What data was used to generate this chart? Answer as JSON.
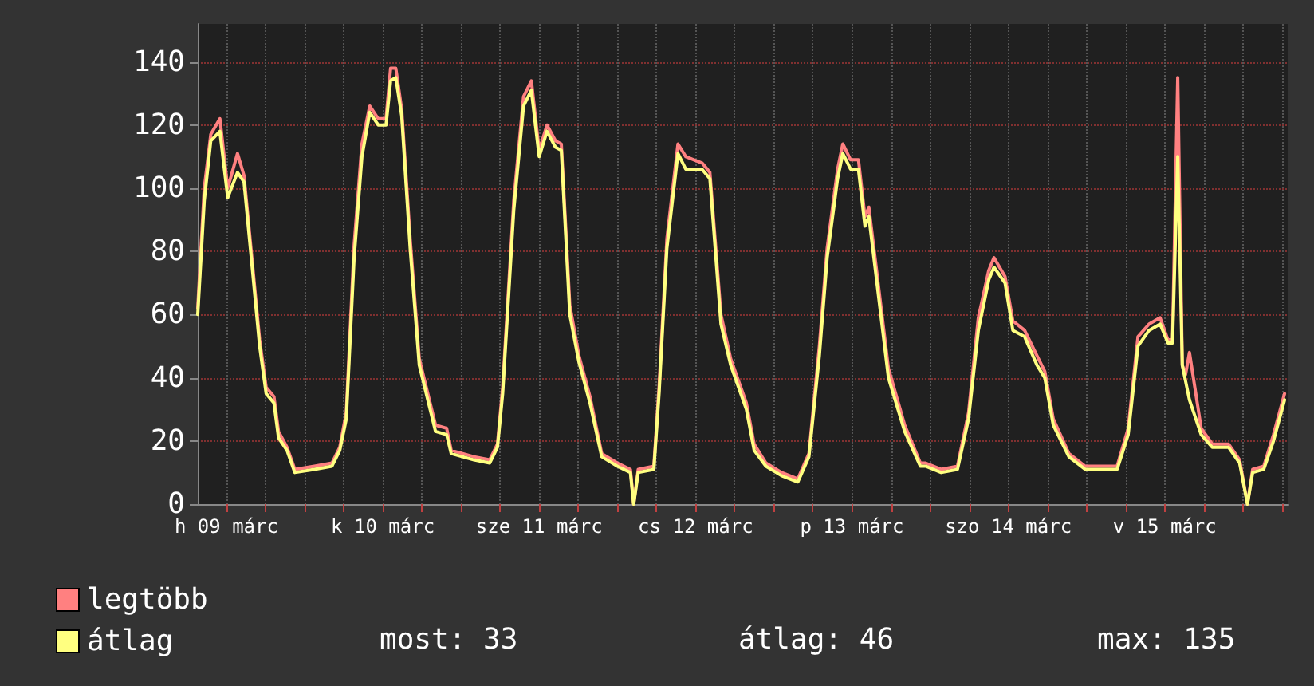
{
  "chart_data": {
    "type": "line",
    "x": [
      "--03-09T07:36",
      "--03-09T08:36",
      "--03-09T09:36",
      "--03-09T11:00",
      "--03-09T12:12",
      "--03-09T13:42",
      "--03-09T14:42",
      "--03-09T16:00",
      "--03-09T17:06",
      "--03-09T18:06",
      "--03-09T19:18",
      "--03-09T20:00",
      "--03-09T21:18",
      "--03-09T22:30",
      "--03-10T01:30",
      "--03-10T04:12",
      "--03-10T05:24",
      "--03-10T06:24",
      "--03-10T07:36",
      "--03-10T08:48",
      "--03-10T10:00",
      "--03-10T11:18",
      "--03-10T12:30",
      "--03-10T13:12",
      "--03-10T14:00",
      "--03-10T14:54",
      "--03-10T16:12",
      "--03-10T17:36",
      "--03-10T20:06",
      "--03-10T21:48",
      "--03-10T22:30",
      "--03-11T02:00",
      "--03-11T04:24",
      "--03-11T05:36",
      "--03-11T06:24",
      "--03-11T08:06",
      "--03-11T09:36",
      "--03-11T10:48",
      "--03-11T12:00",
      "--03-11T13:12",
      "--03-11T14:30",
      "--03-11T15:24",
      "--03-11T16:42",
      "--03-11T18:06",
      "--03-11T19:48",
      "--03-11T21:36",
      "--03-12T00:00",
      "--03-12T02:00",
      "--03-12T02:30",
      "--03-12T03:12",
      "--03-12T05:36",
      "--03-12T06:24",
      "--03-12T07:36",
      "--03-12T09:18",
      "--03-12T10:30",
      "--03-12T13:00",
      "--03-12T14:12",
      "--03-12T15:54",
      "--03-12T17:24",
      "--03-12T19:48",
      "--03-12T21:00",
      "--03-12T22:48",
      "--03-13T01:12",
      "--03-13T03:42",
      "--03-13T05:24",
      "--03-13T07:00",
      "--03-13T08:12",
      "--03-13T09:48",
      "--03-13T10:36",
      "--03-13T11:48",
      "--03-13T13:00",
      "--03-13T14:00",
      "--03-13T14:36",
      "--03-13T15:54",
      "--03-13T17:36",
      "--03-13T20:06",
      "--03-13T22:30",
      "--03-13T23:18",
      "--03-14T01:42",
      "--03-14T04:12",
      "--03-14T05:54",
      "--03-14T07:24",
      "--03-14T09:00",
      "--03-14T09:48",
      "--03-14T11:30",
      "--03-14T12:42",
      "--03-14T14:30",
      "--03-14T16:24",
      "--03-14T17:36",
      "--03-14T18:54",
      "--03-14T21:18",
      "--03-14T23:48",
      "--03-15T03:00",
      "--03-15T04:42",
      "--03-15T06:24",
      "--03-15T07:54",
      "--03-15T09:36",
      "--03-15T11:18",
      "--03-15T12:30",
      "--03-15T13:12",
      "--03-15T14:00",
      "--03-15T14:42",
      "--03-15T15:12",
      "--03-15T15:48",
      "--03-15T17:36",
      "--03-15T19:18",
      "--03-15T21:48",
      "--03-15T23:30",
      "--03-16T00:42",
      "--03-16T01:30",
      "--03-16T03:12",
      "--03-16T04:42",
      "--03-16T06:24"
    ],
    "series": [
      {
        "name": "legtöbb",
        "color": "#ff8080",
        "values": [
          62,
          100,
          117,
          122,
          100,
          111,
          104,
          76,
          52,
          37,
          34,
          23,
          18,
          11,
          12,
          13,
          18,
          29,
          82,
          114,
          126,
          122,
          122,
          138,
          138,
          125,
          84,
          46,
          25,
          24,
          17,
          15,
          14,
          19,
          37,
          96,
          129,
          134,
          112,
          120,
          115,
          114,
          63,
          47,
          34,
          16,
          13,
          11,
          0,
          11,
          12,
          37,
          84,
          114,
          110,
          108,
          105,
          60,
          46,
          32,
          19,
          13,
          10,
          8,
          16,
          50,
          81,
          106,
          114,
          109,
          109,
          91,
          94,
          72,
          43,
          25,
          13,
          13,
          11,
          12,
          29,
          59,
          74,
          78,
          72,
          58,
          55,
          47,
          42,
          27,
          16,
          12,
          12,
          12,
          24,
          53,
          57,
          59,
          52,
          52,
          135,
          44,
          41,
          48,
          24,
          19,
          19,
          14,
          0,
          11,
          12,
          22,
          35
        ]
      },
      {
        "name": "átlag",
        "color": "#ffff80",
        "values": [
          60,
          96,
          115,
          118,
          97,
          105,
          102,
          74,
          50,
          35,
          32,
          21,
          17,
          10,
          11,
          12,
          17,
          27,
          78,
          110,
          124,
          120,
          120,
          134,
          135,
          123,
          81,
          44,
          23,
          22,
          16,
          14,
          13,
          18,
          35,
          93,
          126,
          131,
          110,
          118,
          113,
          112,
          60,
          45,
          32,
          15,
          12,
          10,
          0,
          10,
          11,
          35,
          81,
          111,
          106,
          106,
          103,
          57,
          44,
          30,
          17,
          12,
          9,
          7,
          15,
          47,
          78,
          103,
          111,
          106,
          106,
          88,
          91,
          69,
          40,
          23,
          12,
          12,
          10,
          11,
          27,
          55,
          71,
          75,
          70,
          55,
          53,
          44,
          40,
          25,
          15,
          11,
          11,
          11,
          22,
          50,
          55,
          57,
          51,
          51,
          110,
          44,
          39,
          33,
          22,
          18,
          18,
          13,
          0,
          10,
          11,
          20,
          33
        ]
      }
    ],
    "xlim": [
      "--03-09T07:36",
      "--03-16T07:00"
    ],
    "xticks": [
      {
        "value": "--03-09T12:00",
        "label": "h 09 márc"
      },
      {
        "value": "--03-09T18:00",
        "label": null
      },
      {
        "value": "--03-10T00:00",
        "label": null
      },
      {
        "value": "--03-10T06:00",
        "label": null
      },
      {
        "value": "--03-10T12:00",
        "label": "k 10 márc"
      },
      {
        "value": "--03-10T18:00",
        "label": null
      },
      {
        "value": "--03-11T00:00",
        "label": null
      },
      {
        "value": "--03-11T06:00",
        "label": null
      },
      {
        "value": "--03-11T12:00",
        "label": "sze 11 márc"
      },
      {
        "value": "--03-11T18:00",
        "label": null
      },
      {
        "value": "--03-12T00:00",
        "label": null
      },
      {
        "value": "--03-12T06:00",
        "label": null
      },
      {
        "value": "--03-12T12:00",
        "label": "cs 12 márc"
      },
      {
        "value": "--03-12T18:00",
        "label": null
      },
      {
        "value": "--03-13T00:00",
        "label": null
      },
      {
        "value": "--03-13T06:00",
        "label": null
      },
      {
        "value": "--03-13T12:00",
        "label": "p 13 márc"
      },
      {
        "value": "--03-13T18:00",
        "label": null
      },
      {
        "value": "--03-14T00:00",
        "label": null
      },
      {
        "value": "--03-14T06:00",
        "label": null
      },
      {
        "value": "--03-14T12:00",
        "label": "szo 14 márc"
      },
      {
        "value": "--03-14T18:00",
        "label": null
      },
      {
        "value": "--03-15T00:00",
        "label": null
      },
      {
        "value": "--03-15T06:00",
        "label": null
      },
      {
        "value": "--03-15T12:00",
        "label": "v 15 márc"
      },
      {
        "value": "--03-15T18:00",
        "label": null
      },
      {
        "value": "--03-16T00:00",
        "label": null
      },
      {
        "value": "--03-16T06:00",
        "label": null
      }
    ],
    "ylim": [
      0,
      152
    ],
    "yticks": [
      0,
      20,
      40,
      60,
      80,
      100,
      120,
      140
    ],
    "grid": true,
    "legend": "bottom left",
    "marker": "none",
    "line_style": "solid",
    "annotations": [
      "most: 33",
      "átlag: 46",
      "max: 135"
    ]
  }
}
